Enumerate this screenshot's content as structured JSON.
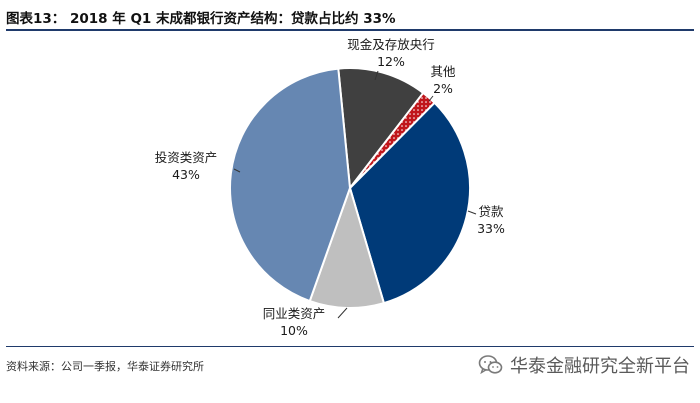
{
  "header": {
    "title": "图表13： 2018 年 Q1 末成都银行资产结构：贷款占比约 33%"
  },
  "chart_data": {
    "type": "pie",
    "slices": [
      {
        "label": "现金及存放央行",
        "value": 12,
        "value_label": "12%",
        "color": "#404040"
      },
      {
        "label": "其他",
        "value": 2,
        "value_label": "2%",
        "color": "#c0161b"
      },
      {
        "label": "贷款",
        "value": 33,
        "value_label": "33%",
        "color": "#003a78"
      },
      {
        "label": "同业类资产",
        "value": 10,
        "value_label": "10%",
        "color": "#bfbfbf"
      },
      {
        "label": "投资类资产",
        "value": 43,
        "value_label": "43%",
        "color": "#6687b2"
      }
    ]
  },
  "footer": {
    "source": "资料来源：公司一季报，华泰证券研究所",
    "watermark": "华泰金融研究全新平台"
  }
}
